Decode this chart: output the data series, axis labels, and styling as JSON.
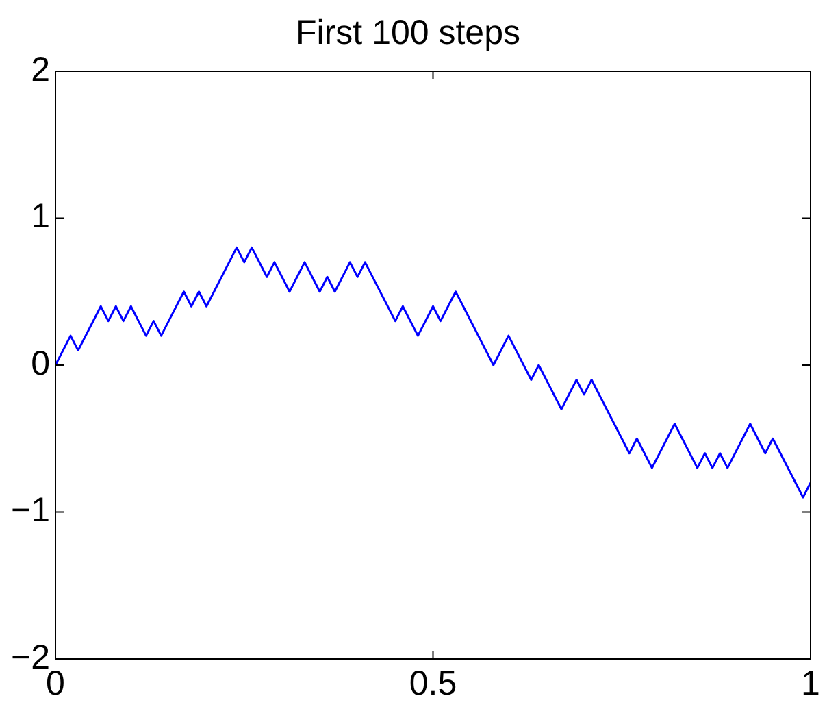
{
  "chart_data": {
    "type": "line",
    "title": "First 100 steps",
    "x": [
      0,
      0.02,
      0.03,
      0.06,
      0.07,
      0.08,
      0.09,
      0.1,
      0.12,
      0.13,
      0.14,
      0.17,
      0.18,
      0.19,
      0.2,
      0.24,
      0.25,
      0.26,
      0.28,
      0.29,
      0.31,
      0.33,
      0.35,
      0.36,
      0.37,
      0.39,
      0.4,
      0.41,
      0.45,
      0.46,
      0.48,
      0.5,
      0.51,
      0.53,
      0.58,
      0.6,
      0.63,
      0.64,
      0.67,
      0.69,
      0.7,
      0.71,
      0.76,
      0.77,
      0.79,
      0.82,
      0.85,
      0.86,
      0.87,
      0.88,
      0.89,
      0.92,
      0.94,
      0.95,
      0.99,
      1
    ],
    "series": [
      {
        "color": "#0000ff",
        "values": [
          0,
          0.2,
          0.1,
          0.4,
          0.3,
          0.4,
          0.3,
          0.4,
          0.2,
          0.3,
          0.2,
          0.5,
          0.4,
          0.5,
          0.4,
          0.8,
          0.7,
          0.8,
          0.6,
          0.7,
          0.5,
          0.7,
          0.5,
          0.6,
          0.5,
          0.7,
          0.6,
          0.7,
          0.3,
          0.4,
          0.2,
          0.4,
          0.3,
          0.5,
          0,
          0.2,
          -0.1,
          0,
          -0.3,
          -0.1,
          -0.2,
          -0.1,
          -0.6,
          -0.5,
          -0.7,
          -0.4,
          -0.7,
          -0.6,
          -0.7,
          -0.6,
          -0.7,
          -0.4,
          -0.6,
          -0.5,
          -0.9,
          -0.8
        ]
      }
    ],
    "xlim": [
      0,
      1
    ],
    "xticks": [
      0,
      0.5,
      1
    ],
    "ylim": [
      -2,
      2
    ],
    "yticks": [
      2,
      1,
      0,
      -1,
      -2
    ],
    "grid": false,
    "legend": false,
    "marker": "none",
    "line_style": "solid"
  }
}
